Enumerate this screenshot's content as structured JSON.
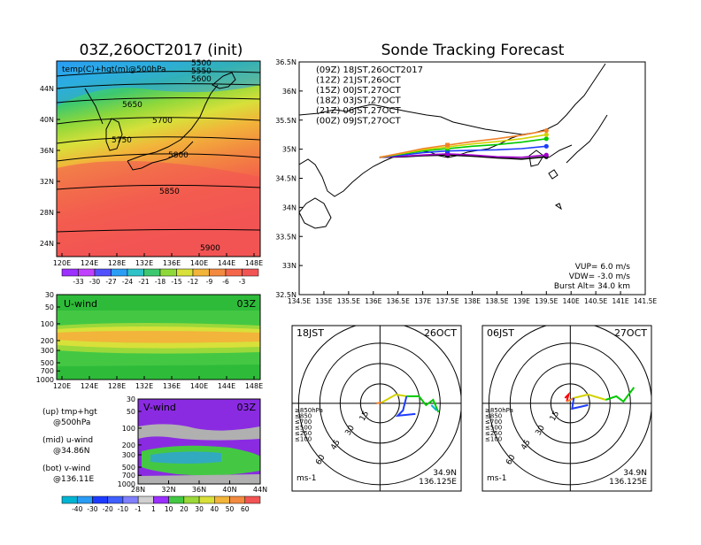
{
  "left_panel": {
    "title": "03Z,26OCT2017 (init)",
    "map_label": "temp(C)+hgt(m)@500hPa",
    "lat_ticks": [
      "44N",
      "40N",
      "36N",
      "32N",
      "28N",
      "24N"
    ],
    "lon_ticks": [
      "120E",
      "124E",
      "128E",
      "132E",
      "136E",
      "140E",
      "144E",
      "148E"
    ],
    "contours": [
      "5500",
      "5550",
      "5600",
      "5650",
      "5700",
      "5750",
      "5800",
      "5850",
      "5900"
    ],
    "colorbar_ticks": [
      "-33",
      "-30",
      "-27",
      "-24",
      "-21",
      "-18",
      "-15",
      "-12",
      "-9",
      "-6",
      "-3"
    ]
  },
  "u_panel": {
    "label": "U-wind",
    "time": "03Z",
    "p_ticks": [
      "30",
      "50",
      "100",
      "200",
      "300",
      "500",
      "700",
      "1000"
    ],
    "lon_ticks": [
      "120E",
      "124E",
      "128E",
      "132E",
      "136E",
      "140E",
      "144E",
      "148E"
    ]
  },
  "v_panel": {
    "label": "V-wind",
    "time": "03Z",
    "p_ticks": [
      "30",
      "50",
      "100",
      "200",
      "300",
      "500",
      "700",
      "1000"
    ],
    "lat_ticks": [
      "28N",
      "32N",
      "36N",
      "40N",
      "44N"
    ]
  },
  "notes": [
    {
      "text": "(up) tmp+hgt"
    },
    {
      "text": "@500hPa"
    },
    {
      "text": "(mid) u-wind"
    },
    {
      "text": "@34.86N"
    },
    {
      "text": "(bot) v-wind"
    },
    {
      "text": "@136.11E"
    }
  ],
  "wind_colorbar_ticks": [
    "-40",
    "-30",
    "-20",
    "-10",
    "-1",
    "1",
    "10",
    "20",
    "30",
    "40",
    "50",
    "60"
  ],
  "track_panel": {
    "title": "Sonde Tracking Forecast",
    "lat_ticks": [
      "36.5N",
      "36N",
      "35.5N",
      "35N",
      "34.5N",
      "34N",
      "33.5N",
      "33N",
      "32.5N"
    ],
    "lon_ticks": [
      "134.5E",
      "135E",
      "135.5E",
      "136E",
      "136.5E",
      "137E",
      "137.5E",
      "138E",
      "138.5E",
      "139E",
      "139.5E",
      "140E",
      "140.5E",
      "141E",
      "141.5E"
    ],
    "legend": [
      {
        "text": "(09Z)  18JST,26OCT2017",
        "color": "#000000"
      },
      {
        "text": "(12Z)  21JST,26OCT",
        "color": "#a000c8"
      },
      {
        "text": "(15Z)  00JST,27OCT",
        "color": "#1e3cff"
      },
      {
        "text": "(18Z)  03JST,27OCT",
        "color": "#00c800"
      },
      {
        "text": "(21Z)  06JST,27OCT",
        "color": "#d2d200"
      },
      {
        "text": "(00Z)  09JST,27OCT",
        "color": "#f08228"
      }
    ],
    "vup": "VUP=  6.0 m/s",
    "vdw": "VDW= -3.0 m/s",
    "burst": "Burst Alt= 34.0 km"
  },
  "hodograph_1": {
    "jst": "18JST",
    "date": "26OCT",
    "lat": "34.9N",
    "lon": "136.125E",
    "unit": "ms-1",
    "ring_labels": [
      "15",
      "30",
      "45",
      "60"
    ],
    "levels": [
      {
        "text": "≥850hPa",
        "color": "#ff0000"
      },
      {
        "text": "≤850",
        "color": "#f08228"
      },
      {
        "text": "≤700",
        "color": "#d2d200"
      },
      {
        "text": "≤500",
        "color": "#00c800"
      },
      {
        "text": "≤250",
        "color": "#00b4d2"
      },
      {
        "text": "≤100",
        "color": "#1e3cff"
      }
    ]
  },
  "hodograph_2": {
    "jst": "06JST",
    "date": "27OCT",
    "lat": "34.9N",
    "lon": "136.125E",
    "unit": "ms-1",
    "ring_labels": [
      "15",
      "30",
      "45",
      "60"
    ],
    "levels": [
      {
        "text": "≥850hPa",
        "color": "#ff0000"
      },
      {
        "text": "≤850",
        "color": "#f08228"
      },
      {
        "text": "≤700",
        "color": "#d2d200"
      },
      {
        "text": "≤500",
        "color": "#00c800"
      },
      {
        "text": "≤250",
        "color": "#00b4d2"
      },
      {
        "text": "≤100",
        "color": "#1e3cff"
      }
    ]
  },
  "chart_data": {
    "type": "line",
    "title": "Sonde Tracking Forecast",
    "xlim": [
      134.5,
      141.5
    ],
    "ylim": [
      32.5,
      36.5
    ],
    "launch": {
      "lon": 136.125,
      "lat": 34.86
    },
    "series": [
      {
        "name": "(09Z)  18JST,26OCT2017",
        "color": "#000000",
        "lon": [
          136.125,
          136.6,
          137.0,
          137.5,
          138.0,
          138.5,
          139.0,
          139.5
        ],
        "lat": [
          34.86,
          34.87,
          34.89,
          34.9,
          34.88,
          34.85,
          34.83,
          34.87
        ]
      },
      {
        "name": "(12Z)  21JST,26OCT",
        "color": "#a000c8",
        "lon": [
          136.125,
          136.6,
          137.0,
          137.5,
          138.0,
          138.5,
          139.0,
          139.5
        ],
        "lat": [
          34.86,
          34.88,
          34.9,
          34.92,
          34.9,
          34.87,
          34.86,
          34.9
        ]
      },
      {
        "name": "(15Z)  00JST,27OCT",
        "color": "#1e3cff",
        "lon": [
          136.125,
          136.6,
          137.0,
          137.5,
          138.0,
          138.5,
          139.0,
          139.5
        ],
        "lat": [
          34.86,
          34.9,
          34.94,
          34.97,
          34.98,
          34.99,
          35.01,
          35.05
        ]
      },
      {
        "name": "(18Z)  03JST,27OCT",
        "color": "#00c800",
        "lon": [
          136.125,
          136.6,
          137.0,
          137.5,
          138.0,
          138.5,
          139.0,
          139.5
        ],
        "lat": [
          34.86,
          34.92,
          34.97,
          35.01,
          35.05,
          35.08,
          35.12,
          35.18
        ]
      },
      {
        "name": "(21Z)  06JST,27OCT",
        "color": "#d2d200",
        "lon": [
          136.125,
          136.6,
          137.0,
          137.5,
          138.0,
          138.5,
          139.0,
          139.5
        ],
        "lat": [
          34.86,
          34.93,
          34.99,
          35.04,
          35.09,
          35.13,
          35.18,
          35.25
        ]
      },
      {
        "name": "(00Z)  09JST,27OCT",
        "color": "#f08228",
        "lon": [
          136.125,
          136.6,
          137.0,
          137.5,
          138.0,
          138.5,
          139.0,
          139.5
        ],
        "lat": [
          34.86,
          34.94,
          35.01,
          35.07,
          35.13,
          35.18,
          35.24,
          35.32
        ]
      }
    ]
  }
}
